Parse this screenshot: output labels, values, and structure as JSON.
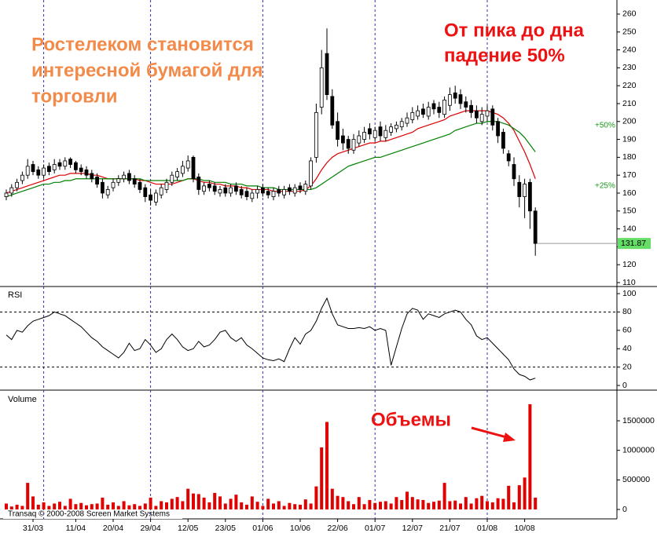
{
  "footer": "Transaq © 2000-2008 Screen Market Systems",
  "chart_data": [
    {
      "type": "candlestick",
      "headline": {
        "color": "#f28a4a",
        "lines": [
          "Ростелеком становится",
          "интересной бумагой для",
          "торговли"
        ]
      },
      "note": {
        "color": "#ee1111",
        "lines": [
          "От пика до дна",
          "падение 50%"
        ]
      },
      "level_labels": [
        "+50%",
        "+25%"
      ],
      "level_color": "#1a9a1a",
      "open": [
        158,
        160,
        163,
        167,
        170,
        176,
        173,
        170,
        175,
        173,
        177,
        175,
        179,
        177,
        174,
        173,
        171,
        169,
        166,
        159,
        163,
        166,
        168,
        171,
        168,
        166,
        163,
        159,
        155,
        159,
        162,
        166,
        169,
        171,
        174,
        180,
        169,
        161,
        165,
        164,
        160,
        163,
        160,
        164,
        162,
        161,
        157,
        160,
        163,
        161,
        158,
        162,
        159,
        163,
        160,
        164,
        161,
        164,
        180,
        208,
        238,
        214,
        200,
        192,
        190,
        184,
        188,
        190,
        196,
        191,
        197,
        191,
        194,
        196,
        197,
        199,
        201,
        203,
        207,
        203,
        210,
        208,
        204,
        209,
        216,
        215,
        211,
        209,
        206,
        200,
        203,
        207,
        200,
        194,
        182,
        176,
        166,
        158,
        166,
        150
      ],
      "high": [
        162,
        165,
        168,
        172,
        179,
        178,
        175,
        176,
        177,
        179,
        179,
        180,
        180,
        178,
        176,
        175,
        173,
        171,
        168,
        164,
        168,
        170,
        172,
        173,
        170,
        168,
        165,
        162,
        162,
        165,
        168,
        172,
        174,
        178,
        181,
        181,
        171,
        166,
        167,
        166,
        164,
        165,
        165,
        166,
        164,
        163,
        162,
        164,
        165,
        163,
        163,
        164,
        164,
        165,
        165,
        166,
        167,
        180,
        210,
        240,
        252,
        218,
        205,
        196,
        192,
        193,
        195,
        197,
        199,
        197,
        200,
        198,
        199,
        200,
        202,
        205,
        208,
        209,
        210,
        211,
        212,
        211,
        214,
        219,
        220,
        218,
        214,
        212,
        209,
        208,
        209,
        209,
        202,
        196,
        184,
        180,
        170,
        168,
        168,
        152
      ],
      "low": [
        156,
        158,
        161,
        165,
        168,
        170,
        168,
        168,
        170,
        171,
        173,
        173,
        174,
        171,
        170,
        168,
        166,
        163,
        157,
        157,
        161,
        164,
        166,
        165,
        163,
        160,
        155,
        153,
        153,
        157,
        160,
        164,
        167,
        169,
        172,
        166,
        159,
        159,
        161,
        159,
        158,
        158,
        158,
        159,
        157,
        156,
        155,
        157,
        158,
        157,
        156,
        158,
        157,
        159,
        158,
        160,
        159,
        162,
        177,
        204,
        212,
        196,
        186,
        184,
        182,
        182,
        186,
        188,
        190,
        189,
        189,
        189,
        192,
        194,
        195,
        197,
        199,
        201,
        202,
        201,
        204,
        202,
        202,
        206,
        210,
        207,
        205,
        202,
        199,
        198,
        200,
        195,
        188,
        182,
        175,
        164,
        152,
        146,
        140,
        125
      ],
      "close": [
        160,
        163,
        166,
        170,
        175,
        172,
        170,
        174,
        172,
        176,
        175,
        178,
        176,
        173,
        172,
        170,
        168,
        165,
        160,
        162,
        166,
        168,
        170,
        167,
        165,
        162,
        158,
        156,
        160,
        163,
        166,
        170,
        172,
        175,
        178,
        168,
        162,
        164,
        163,
        161,
        162,
        160,
        163,
        161,
        159,
        158,
        160,
        162,
        160,
        159,
        161,
        160,
        162,
        161,
        163,
        162,
        165,
        178,
        205,
        230,
        215,
        198,
        190,
        188,
        185,
        190,
        192,
        194,
        193,
        195,
        192,
        195,
        197,
        198,
        200,
        202,
        205,
        206,
        204,
        208,
        207,
        205,
        212,
        215,
        213,
        210,
        208,
        205,
        202,
        204,
        206,
        198,
        192,
        185,
        178,
        168,
        158,
        165,
        150,
        131.87
      ],
      "up_color": "#ffffff",
      "down_color": "#000000",
      "ma_series": [
        {
          "color": "#dd0000",
          "values": [
            160,
            161,
            162,
            163,
            164,
            165,
            166,
            167,
            168,
            169,
            170,
            170,
            171,
            171,
            171,
            171,
            170,
            170,
            169,
            168,
            168,
            168,
            168,
            168,
            168,
            167,
            167,
            166,
            165,
            165,
            165,
            165,
            166,
            167,
            168,
            168,
            167,
            166,
            166,
            165,
            165,
            164,
            164,
            164,
            163,
            163,
            162,
            162,
            162,
            162,
            161,
            161,
            161,
            161,
            161,
            161,
            162,
            164,
            168,
            173,
            177,
            180,
            182,
            183,
            184,
            185,
            186,
            187,
            188,
            188,
            189,
            189,
            190,
            191,
            192,
            193,
            194,
            196,
            197,
            198,
            199,
            200,
            201,
            203,
            204,
            205,
            206,
            206,
            206,
            206,
            206,
            205,
            204,
            202,
            199,
            195,
            189,
            183,
            176,
            168
          ]
        },
        {
          "color": "#008000",
          "values": [
            158,
            159,
            160,
            161,
            162,
            163,
            164,
            165,
            165,
            166,
            166,
            167,
            167,
            168,
            168,
            168,
            168,
            168,
            168,
            168,
            168,
            168,
            168,
            168,
            168,
            168,
            167,
            167,
            167,
            167,
            167,
            167,
            167,
            167,
            168,
            168,
            168,
            167,
            167,
            166,
            166,
            166,
            165,
            165,
            165,
            164,
            164,
            164,
            163,
            163,
            163,
            162,
            162,
            162,
            162,
            162,
            162,
            162,
            163,
            165,
            167,
            169,
            171,
            173,
            175,
            176,
            177,
            178,
            179,
            180,
            180,
            181,
            182,
            183,
            184,
            185,
            186,
            187,
            188,
            189,
            190,
            191,
            192,
            193,
            195,
            196,
            197,
            198,
            199,
            199,
            200,
            200,
            200,
            199,
            198,
            196,
            194,
            191,
            187,
            183
          ]
        }
      ],
      "last_color": "#66dd66",
      "ylim": [
        110,
        262
      ],
      "yticks": [
        110,
        120,
        130,
        140,
        150,
        160,
        170,
        180,
        190,
        200,
        210,
        220,
        230,
        240,
        250,
        260
      ]
    },
    {
      "type": "line",
      "label": "RSI",
      "color": "#000000",
      "values": [
        55,
        50,
        60,
        58,
        65,
        70,
        72,
        74,
        76,
        80,
        78,
        76,
        72,
        68,
        64,
        58,
        52,
        48,
        42,
        38,
        34,
        30,
        36,
        46,
        38,
        40,
        50,
        44,
        36,
        40,
        50,
        56,
        50,
        42,
        38,
        40,
        48,
        42,
        44,
        50,
        58,
        60,
        52,
        48,
        52,
        44,
        40,
        35,
        30,
        28,
        27,
        29,
        26,
        40,
        52,
        45,
        56,
        60,
        70,
        84,
        95,
        78,
        66,
        64,
        62,
        62,
        63,
        62,
        64,
        60,
        62,
        60,
        22,
        42,
        62,
        78,
        84,
        82,
        72,
        78,
        76,
        74,
        78,
        80,
        82,
        80,
        72,
        66,
        54,
        50,
        52,
        46,
        40,
        34,
        28,
        18,
        12,
        10,
        6,
        8
      ],
      "levels": [
        20,
        80
      ],
      "ylim": [
        -5,
        105
      ],
      "yticks": [
        0,
        20,
        40,
        60,
        80,
        100
      ]
    },
    {
      "type": "bar",
      "label": "Volume",
      "color": "#e00000",
      "annotation": {
        "text": "Объемы",
        "color": "#ee1111"
      },
      "categories": [
        null,
        null,
        null,
        null,
        null,
        "31/03",
        null,
        null,
        null,
        null,
        null,
        null,
        null,
        "11/04",
        null,
        null,
        null,
        null,
        null,
        null,
        "20/04",
        null,
        null,
        null,
        null,
        null,
        null,
        "29/04",
        null,
        null,
        null,
        null,
        null,
        null,
        "12/05",
        null,
        null,
        null,
        null,
        null,
        null,
        "23/05",
        null,
        null,
        null,
        null,
        null,
        null,
        "01/06",
        null,
        null,
        null,
        null,
        null,
        null,
        "10/06",
        null,
        null,
        null,
        null,
        null,
        null,
        "22/06",
        null,
        null,
        null,
        null,
        null,
        null,
        "01/07",
        null,
        null,
        null,
        null,
        null,
        null,
        "12/07",
        null,
        null,
        null,
        null,
        null,
        null,
        "21/07",
        null,
        null,
        null,
        null,
        null,
        null,
        "01/08",
        null,
        null,
        null,
        null,
        null,
        null,
        "10/08",
        null,
        null
      ],
      "values": [
        100000,
        50000,
        80000,
        60000,
        450000,
        220000,
        80000,
        120000,
        60000,
        100000,
        130000,
        60000,
        180000,
        90000,
        110000,
        70000,
        90000,
        100000,
        200000,
        80000,
        120000,
        60000,
        140000,
        70000,
        90000,
        60000,
        100000,
        200000,
        60000,
        140000,
        120000,
        180000,
        210000,
        140000,
        350000,
        270000,
        260000,
        200000,
        120000,
        280000,
        220000,
        100000,
        180000,
        250000,
        120000,
        80000,
        220000,
        130000,
        60000,
        180000,
        100000,
        140000,
        60000,
        110000,
        90000,
        80000,
        170000,
        100000,
        390000,
        1050000,
        1480000,
        350000,
        230000,
        210000,
        140000,
        90000,
        210000,
        90000,
        160000,
        110000,
        130000,
        140000,
        100000,
        210000,
        160000,
        300000,
        210000,
        170000,
        160000,
        110000,
        130000,
        150000,
        450000,
        140000,
        150000,
        100000,
        210000,
        100000,
        190000,
        230000,
        140000,
        120000,
        190000,
        180000,
        400000,
        120000,
        410000,
        540000,
        1780000,
        200000
      ],
      "ylim": [
        0,
        1900000
      ],
      "yticks": [
        0,
        500000,
        1000000,
        1500000
      ]
    }
  ]
}
